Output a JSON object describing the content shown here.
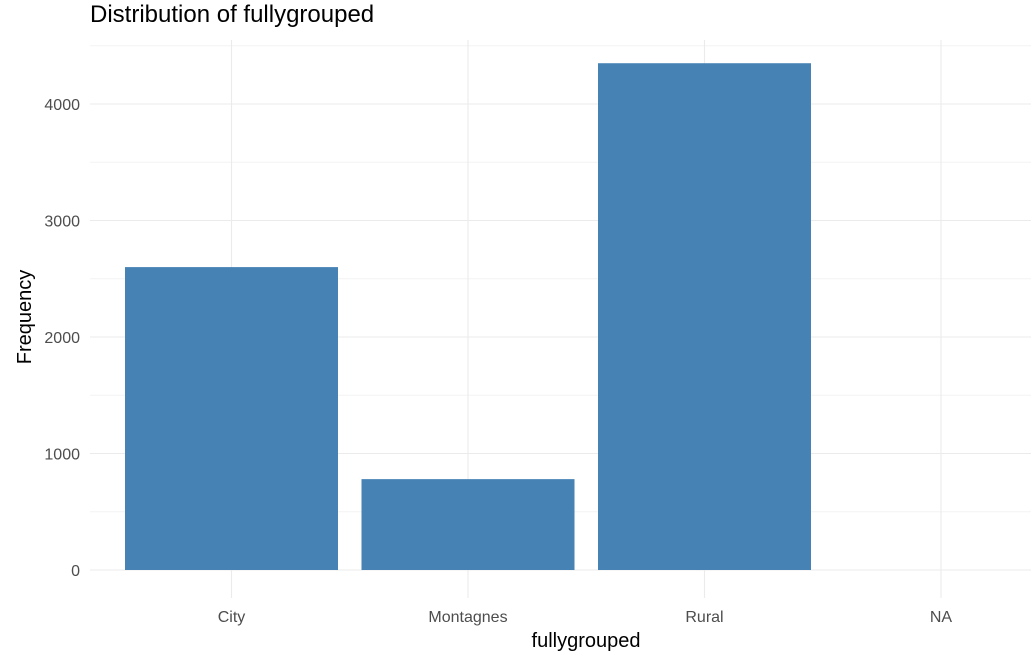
{
  "chart_data": {
    "type": "bar",
    "title": "Distribution of fullygrouped",
    "xlabel": "fullygrouped",
    "ylabel": "Frequency",
    "categories": [
      "City",
      "Montagnes",
      "Rural",
      "NA"
    ],
    "values": [
      2600,
      780,
      4350,
      0
    ],
    "ylim": [
      0,
      4500
    ],
    "yticks": [
      0,
      1000,
      2000,
      3000,
      4000
    ],
    "grid": true,
    "bar_color": "#4682B4",
    "grid_color": "#EBEBEB"
  }
}
